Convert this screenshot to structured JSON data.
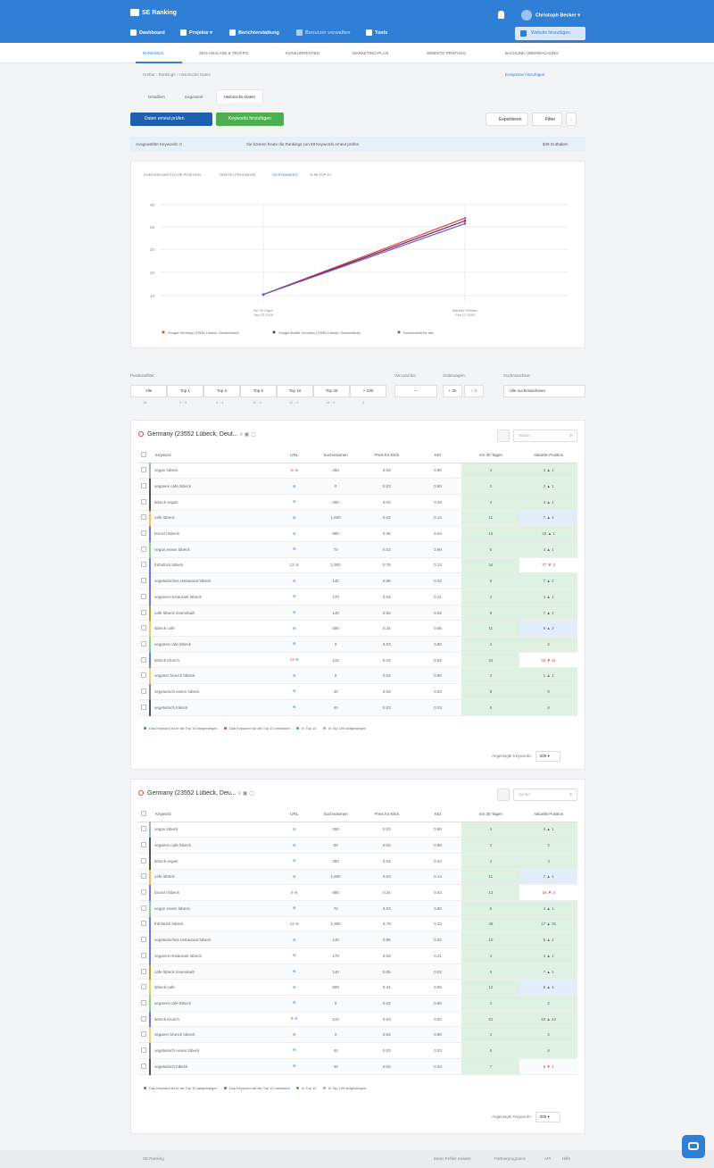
{
  "header": {
    "logo": "SE Ranking",
    "user": "Christoph Becker",
    "nav": [
      "Dashboard",
      "Projekte ▾",
      "Berichterstattung",
      "Benutzer verwalten",
      "Tools"
    ],
    "website_button": "Website hinzufügen"
  },
  "subnav": [
    "Rankings",
    "SEO-Analyse & Traffic",
    "Konkurrenten",
    "Marketing-Plan",
    "Website-Prüfung",
    "Backlink-Überwachung"
  ],
  "breadcrumb": "Hörbür  ›  Rankings  ›  Historische Daten",
  "history_link": "Ereignisse hinzufügen",
  "tabs": [
    "Detailliert",
    "Insgesamt",
    "Historische Daten"
  ],
  "toolbar": {
    "check": "Daten erneut prüfen",
    "add": "Keywords hinzufügen",
    "export": "Exportieren",
    "filter": "Filter",
    "more": "⋮"
  },
  "info": {
    "selected": "Ausgewählte Keywords: 0",
    "text": "Sie können heute die Rankings von 58 Keywords erneut prüfen",
    "credits": "$49 Guthaben"
  },
  "chart_tabs": [
    "Durchschnittliche Position",
    "Traffic-Prognose",
    "Sichtbarkeit",
    "% im Top 10"
  ],
  "chart_data": {
    "type": "line",
    "x": [
      "Vor 30 Tagen\nSep 22 2018",
      "Aktuelle Position\nFeb 12 2018"
    ],
    "ylim": [
      12,
      30
    ],
    "yticks": [
      30,
      25,
      20,
      15,
      10
    ],
    "series": [
      {
        "name": "Google Germany (23552 Lübeck, Deutschland)",
        "color": "#e84335",
        "values": [
          13.5,
          27.5
        ]
      },
      {
        "name": "Google Mobile Germany (23552 Lübeck, Deutschland)",
        "color": "#7b1f6e",
        "values": [
          13.5,
          27
        ]
      },
      {
        "name": "Durchschnitt für alle",
        "color": "#6a5acd",
        "values": [
          13.5,
          26.5
        ]
      }
    ]
  },
  "filters": {
    "positions_label": "Positionsfilter:",
    "positions": [
      "Alle",
      "Top 1",
      "Top 3",
      "Top 5",
      "Top 10",
      "Top 30",
      "> 100"
    ],
    "counts": [
      "16",
      "2 ↑ 0",
      "4 ↑ 4",
      "12 ↑ 0",
      "12 ↑ 0",
      "16 ↑ 0",
      "0"
    ],
    "range_label": "Von und bis:",
    "range": "—",
    "changes_label": "Änderungen:",
    "changes": [
      "+ 30",
      "+ 0"
    ],
    "engines_label": "Suchmaschine:",
    "engines": "Alle suchmaschinen"
  },
  "tables": [
    {
      "title": "Germany (23552 Lübeck, Deut...",
      "search": "Suche",
      "headers": [
        "Keyword",
        "URL",
        "Suchvolumen",
        "Preis für Klick",
        "KEI",
        "Vor 30 Tagen",
        "Aktuelle Position"
      ],
      "rows": [
        [
          "vegan lübeck",
          "⊖",
          "260",
          "0.03",
          "0.90",
          "4",
          "3 ▲ 1"
        ],
        [
          "veganes cafe lübeck",
          "",
          "0",
          "0.03",
          "0.90",
          "2",
          "2 ▲ 1"
        ],
        [
          "lübeck vegan",
          "",
          "260",
          "0.03",
          "0.48",
          "4",
          "3 ▲ 1"
        ],
        [
          "cafe lübeck",
          "",
          "1,600",
          "0.03",
          "0.14",
          "11",
          "7 ▲ 4"
        ],
        [
          "brunch lübeck",
          "",
          "880",
          "0.36",
          "3.63",
          "16",
          "15 ▲ 1"
        ],
        [
          "vegan essen lübeck",
          "",
          "70",
          "0.03",
          "0.90",
          "5",
          "4 ▲ 1"
        ],
        [
          "frühstück lübeck",
          "12",
          "1,900",
          "0.78",
          "0.13",
          "34",
          "37 ▼ 3"
        ],
        [
          "vegetarisches restaurant lübeck",
          "",
          "140",
          "0.86",
          "0.02",
          "9",
          "7 ▲ 2"
        ],
        [
          "veganes restaurant lübeck",
          "",
          "170",
          "0.03",
          "0.21",
          "4",
          "3 ▲ 1"
        ],
        [
          "cafe lübeck innenstadt",
          "",
          "140",
          "0.05",
          "0.02",
          "9",
          "7 ▲ 2"
        ],
        [
          "lübeck cafe",
          "",
          "590",
          "0.34",
          "0.06",
          "11",
          "8 ▲ 3"
        ],
        [
          "veganes cafe lübeck",
          "",
          "0",
          "0.03",
          "0.90",
          "2",
          "2"
        ],
        [
          "lübeck brunch",
          "12",
          "110",
          "0.03",
          "0.02",
          "34",
          "45 ▼ 11"
        ],
        [
          "veganer brunch lübeck",
          "",
          "0",
          "0.03",
          "0.90",
          "2",
          "1 ▲ 1"
        ],
        [
          "vegetarisch essen lübeck",
          "",
          "40",
          "0.03",
          "0.03",
          "8",
          "8"
        ],
        [
          "vegetarisch lübeck",
          "",
          "40",
          "0.03",
          "0.03",
          "8",
          "8"
        ]
      ],
      "legend": [
        "Das Keyword ist in die Top 10 aufgestiegen",
        "Das Keyword hat die Top 10 verlassen",
        "In Top 10",
        "In Top 100 aufgestiegen"
      ],
      "shown_label": "Angezeigte Keywords:",
      "shown_value": "200"
    },
    {
      "title": "Germany (23552 Lübeck, Deu...",
      "search": "Suche",
      "headers": [
        "Keyword",
        "URL",
        "Suchvolumen",
        "Preis für Klick",
        "KEI",
        "Vor 30 Tagen",
        "Aktuelle Position"
      ],
      "rows": [
        [
          "vegan lübeck",
          "",
          "260",
          "0.03",
          "0.90",
          "4",
          "4 ▲ 1"
        ],
        [
          "veganes cafe lübeck",
          "",
          "30",
          "0.03",
          "0.90",
          "2",
          "2"
        ],
        [
          "lübeck vegan",
          "",
          "260",
          "0.03",
          "0.04",
          "4",
          "4"
        ],
        [
          "cafe lübeck",
          "",
          "1,600",
          "0.03",
          "0.14",
          "11",
          "7 ▲ 4"
        ],
        [
          "brunch lübeck",
          "9",
          "880",
          "0.3s",
          "0.63",
          "13",
          "16 ▼ 3"
        ],
        [
          "vegan essen lübeck",
          "",
          "70",
          "0.03",
          "0.90",
          "5",
          "4 ▲ 1"
        ],
        [
          "frühstück lübeck",
          "12",
          "1,900",
          "0.78",
          "0.13",
          "48",
          "17 ▲ 31"
        ],
        [
          "vegetarisches restaurant lübeck",
          "",
          "140",
          "0.86",
          "0.02",
          "10",
          "8 ▲ 2"
        ],
        [
          "veganes restaurant lübeck",
          "",
          "170",
          "0.03",
          "0.21",
          "4",
          "3 ▲ 1"
        ],
        [
          "cafe lübeck innenstadt",
          "",
          "140",
          "0.05",
          "0.02",
          "9",
          "7 ▲ 2"
        ],
        [
          "lübeck cafe",
          "",
          "590",
          "0.34",
          "0.06",
          "12",
          "8 ▲ 4"
        ],
        [
          "veganes cafe lübeck",
          "",
          "0",
          "0.03",
          "0.90",
          "2",
          "2"
        ],
        [
          "lübeck brunch",
          "9",
          "110",
          "0.03",
          "0.02",
          "91",
          "49 ▲ 42"
        ],
        [
          "veganer brunch lübeck",
          "",
          "0",
          "0.03",
          "0.90",
          "2",
          "2"
        ],
        [
          "vegetarisch essen lübeck",
          "",
          "40",
          "0.03",
          "0.03",
          "8",
          "8"
        ],
        [
          "vegetarisch lübeck",
          "",
          "40",
          "0.03",
          "0.03",
          "7",
          "8 ▼ 1"
        ]
      ],
      "legend": [
        "Das Keyword ist in die Top 10 aufgestiegen",
        "Das Keyword hat die Top 10 verlassen",
        "In Top 10",
        "In Top 100 aufgestiegen"
      ],
      "shown_label": "Angezeigte Keywords:",
      "shown_value": "200"
    }
  ],
  "footer": {
    "logo": "SE Ranking",
    "links": [
      "Einen Fehler melden",
      "Partnerprogramm",
      "API",
      "Hilfe"
    ]
  }
}
